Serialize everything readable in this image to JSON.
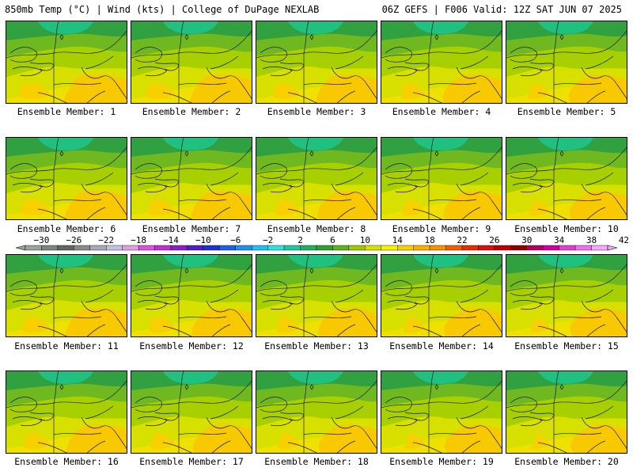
{
  "header": {
    "left": "850mb Temp (°C) | Wind (kts) | College of DuPage NEXLAB",
    "right": "06Z GEFS | F006 Valid: 12Z SAT JUN 07 2025"
  },
  "panels": [
    {
      "label": "Ensemble Member: 1"
    },
    {
      "label": "Ensemble Member: 2"
    },
    {
      "label": "Ensemble Member: 3"
    },
    {
      "label": "Ensemble Member: 4"
    },
    {
      "label": "Ensemble Member: 5"
    },
    {
      "label": "Ensemble Member: 6"
    },
    {
      "label": "Ensemble Member: 7"
    },
    {
      "label": "Ensemble Member: 8"
    },
    {
      "label": "Ensemble Member: 9"
    },
    {
      "label": "Ensemble Member: 10"
    },
    {
      "label": "Ensemble Member: 11"
    },
    {
      "label": "Ensemble Member: 12"
    },
    {
      "label": "Ensemble Member: 13"
    },
    {
      "label": "Ensemble Member: 14"
    },
    {
      "label": "Ensemble Member: 15"
    },
    {
      "label": "Ensemble Member: 16"
    },
    {
      "label": "Ensemble Member: 17"
    },
    {
      "label": "Ensemble Member: 18"
    },
    {
      "label": "Ensemble Member: 19"
    },
    {
      "label": "Ensemble Member: 20"
    }
  ],
  "colorbar": {
    "labels": [
      "−30",
      "−26",
      "−22",
      "−18",
      "−14",
      "−10",
      "−6",
      "−2",
      "2",
      "6",
      "10",
      "14",
      "18",
      "22",
      "26",
      "30",
      "34",
      "38",
      "42"
    ],
    "colors": [
      "#9aa59a",
      "#7a867a",
      "#5e6a5e",
      "#8a8a8a",
      "#a8a8b8",
      "#c0c0e0",
      "#e0a0e0",
      "#e050e0",
      "#c030d0",
      "#8a20c0",
      "#5020c0",
      "#2030d0",
      "#2060e0",
      "#2090e8",
      "#20c0f0",
      "#30e0e0",
      "#20c8a0",
      "#20b060",
      "#30a030",
      "#60b020",
      "#a0c800",
      "#d8e000",
      "#f8f000",
      "#f8d000",
      "#f8b000",
      "#f89000",
      "#f06000",
      "#e03000",
      "#d81010",
      "#c00000",
      "#900000",
      "#b00060",
      "#d000a0",
      "#e040d0",
      "#f070f0",
      "#f8a8f8"
    ]
  }
}
